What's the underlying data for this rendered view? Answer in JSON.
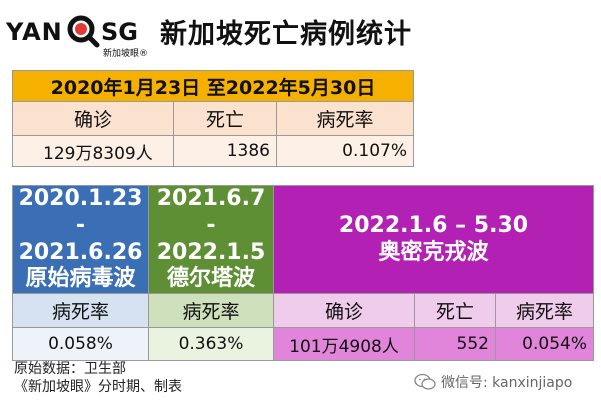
{
  "logo": {
    "left": "YAN",
    "right": "SG",
    "sub": "新加坡眼®"
  },
  "title": "新加坡死亡病例统计",
  "overall": {
    "period": "2020年1月23日 至2022年5月30日",
    "headers": [
      "确诊",
      "死亡",
      "病死率"
    ],
    "values": [
      "129万8309人",
      "1386",
      "0.107%"
    ]
  },
  "waves": {
    "original": {
      "line1": "2020.1.23",
      "line2": "- 2021.6.26",
      "name": "原始病毒波",
      "header": "病死率",
      "value": "0.058%"
    },
    "delta": {
      "line1": "2021.6.7",
      "line2": "- 2022.1.5",
      "name": "德尔塔波",
      "header": "病死率",
      "value": "0.363%"
    },
    "omicron": {
      "line1": "2022.1.6 – 5.30",
      "name": "奥密克戎波",
      "headers": [
        "确诊",
        "死亡",
        "病死率"
      ],
      "values": [
        "101万4908人",
        "552",
        "0.054%"
      ]
    }
  },
  "source": {
    "line1": "原始数据：卫生部",
    "line2": "《新加坡眼》分时期、制表"
  },
  "wechat": "微信号: kanxinjiapo",
  "colors": {
    "orange": "#f5b000",
    "blue": "#3a6fb5",
    "green": "#5e8f35",
    "purple": "#b220b4"
  }
}
